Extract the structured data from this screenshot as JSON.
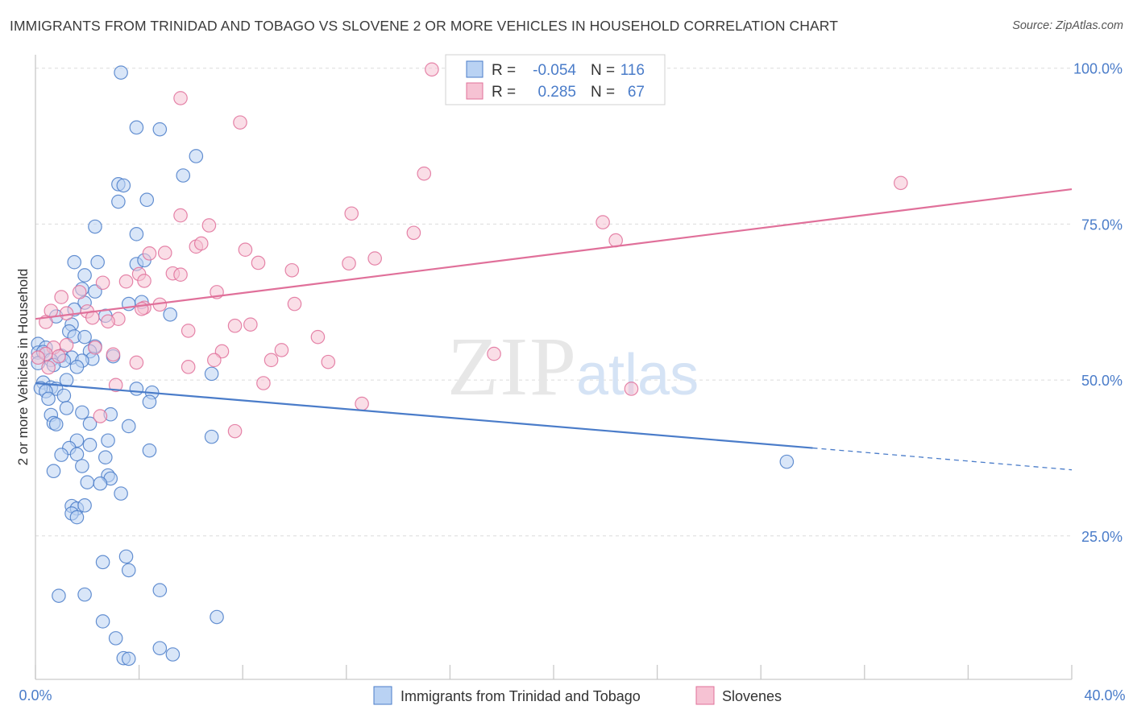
{
  "title": "IMMIGRANTS FROM TRINIDAD AND TOBAGO VS SLOVENE 2 OR MORE VEHICLES IN HOUSEHOLD CORRELATION CHART",
  "source": "Source: ZipAtlas.com",
  "watermark": {
    "zip": "ZIP",
    "atlas": "atlas"
  },
  "legend_box": {
    "rows": [
      {
        "r_label": "R =",
        "r_value": "-0.054",
        "n_label": "N =",
        "n_value": "116"
      },
      {
        "r_label": "R =",
        "r_value": "0.285",
        "n_label": "N =",
        "n_value": "67"
      }
    ]
  },
  "chart_data": {
    "type": "scatter",
    "xlabel": "",
    "ylabel": "2 or more Vehicles in Household",
    "xlim": [
      0,
      40
    ],
    "ylim": [
      2,
      101
    ],
    "x_tick_labels": [
      "0.0%",
      "40.0%"
    ],
    "y_ticks": [
      25,
      50,
      75,
      100
    ],
    "y_tick_labels": [
      "25.0%",
      "50.0%",
      "75.0%",
      "100.0%"
    ],
    "grid": true,
    "legend_position": "bottom",
    "colors": {
      "blue": "#4a7cc9",
      "blue_fill": "#b9d2f3",
      "pink": "#e0709a",
      "pink_fill": "#f6c2d3",
      "tick_text": "#4a7cc9"
    },
    "series": [
      {
        "name": "Immigrants from Trinidad and Tobago",
        "color": "#4a7cc9",
        "trend": {
          "x": [
            0,
            30
          ],
          "y": [
            49.5,
            39.1
          ],
          "dashed_x": [
            30,
            40
          ],
          "dashed_y": [
            39.1,
            35.6
          ]
        },
        "points": [
          [
            3.3,
            99.3
          ],
          [
            3.9,
            90.5
          ],
          [
            4.8,
            90.2
          ],
          [
            6.2,
            85.9
          ],
          [
            5.7,
            82.8
          ],
          [
            3.2,
            81.4
          ],
          [
            3.4,
            81.2
          ],
          [
            4.3,
            78.9
          ],
          [
            3.2,
            78.6
          ],
          [
            2.3,
            74.6
          ],
          [
            3.9,
            73.4
          ],
          [
            1.5,
            68.9
          ],
          [
            2.4,
            68.9
          ],
          [
            3.9,
            68.6
          ],
          [
            4.2,
            69.2
          ],
          [
            1.9,
            66.8
          ],
          [
            1.8,
            64.6
          ],
          [
            2.3,
            64.2
          ],
          [
            1.9,
            62.4
          ],
          [
            3.6,
            62.2
          ],
          [
            4.1,
            62.5
          ],
          [
            1.5,
            61.3
          ],
          [
            5.2,
            60.5
          ],
          [
            2.7,
            60.3
          ],
          [
            0.8,
            60.2
          ],
          [
            1.4,
            58.9
          ],
          [
            1.3,
            57.8
          ],
          [
            1.5,
            57.0
          ],
          [
            1.9,
            56.9
          ],
          [
            0.1,
            55.8
          ],
          [
            2.3,
            55.4
          ],
          [
            0.4,
            55.2
          ],
          [
            0.1,
            54.4
          ],
          [
            0.3,
            54.5
          ],
          [
            2.1,
            54.6
          ],
          [
            1.0,
            53.9
          ],
          [
            3.0,
            53.8
          ],
          [
            1.4,
            53.6
          ],
          [
            2.2,
            53.4
          ],
          [
            0.6,
            53.2
          ],
          [
            1.1,
            53.1
          ],
          [
            1.8,
            53.1
          ],
          [
            0.7,
            52.4
          ],
          [
            1.6,
            52.1
          ],
          [
            0.1,
            52.7
          ],
          [
            6.8,
            51.0
          ],
          [
            1.2,
            50.0
          ],
          [
            0.3,
            49.6
          ],
          [
            0.6,
            48.8
          ],
          [
            0.2,
            48.7
          ],
          [
            0.8,
            48.6
          ],
          [
            0.4,
            48.2
          ],
          [
            3.9,
            48.6
          ],
          [
            4.5,
            48.0
          ],
          [
            1.1,
            47.5
          ],
          [
            0.5,
            47.0
          ],
          [
            4.4,
            46.5
          ],
          [
            1.2,
            45.5
          ],
          [
            1.8,
            44.8
          ],
          [
            2.9,
            44.5
          ],
          [
            0.6,
            44.4
          ],
          [
            0.7,
            43.1
          ],
          [
            0.8,
            42.9
          ],
          [
            2.1,
            43.0
          ],
          [
            3.6,
            42.6
          ],
          [
            6.8,
            40.9
          ],
          [
            1.6,
            40.3
          ],
          [
            2.8,
            40.3
          ],
          [
            1.3,
            39.1
          ],
          [
            2.1,
            39.6
          ],
          [
            4.4,
            38.7
          ],
          [
            1.0,
            38.0
          ],
          [
            1.6,
            38.1
          ],
          [
            2.7,
            37.6
          ],
          [
            1.8,
            36.2
          ],
          [
            29.0,
            36.9
          ],
          [
            0.7,
            35.4
          ],
          [
            2.8,
            34.7
          ],
          [
            2.9,
            34.2
          ],
          [
            2.0,
            33.6
          ],
          [
            2.5,
            33.4
          ],
          [
            3.3,
            31.8
          ],
          [
            1.4,
            29.8
          ],
          [
            1.6,
            29.4
          ],
          [
            1.9,
            29.9
          ],
          [
            1.4,
            28.6
          ],
          [
            1.6,
            28.0
          ],
          [
            3.5,
            21.7
          ],
          [
            2.6,
            20.8
          ],
          [
            3.6,
            19.5
          ],
          [
            4.8,
            16.3
          ],
          [
            0.9,
            15.4
          ],
          [
            1.9,
            15.6
          ],
          [
            7.0,
            12.0
          ],
          [
            2.6,
            11.3
          ],
          [
            3.1,
            8.6
          ],
          [
            4.8,
            7.0
          ],
          [
            5.3,
            6.0
          ],
          [
            3.4,
            5.4
          ],
          [
            3.6,
            5.3
          ]
        ]
      },
      {
        "name": "Slovenes",
        "color": "#e0709a",
        "trend": {
          "x": [
            0,
            40
          ],
          "y": [
            59.8,
            80.6
          ]
        },
        "points": [
          [
            15.3,
            99.8
          ],
          [
            5.6,
            95.2
          ],
          [
            7.9,
            91.3
          ],
          [
            15.0,
            83.1
          ],
          [
            33.4,
            81.6
          ],
          [
            12.2,
            76.7
          ],
          [
            5.6,
            76.4
          ],
          [
            6.7,
            74.8
          ],
          [
            21.9,
            75.3
          ],
          [
            14.6,
            73.6
          ],
          [
            22.4,
            72.4
          ],
          [
            6.2,
            71.4
          ],
          [
            6.4,
            71.9
          ],
          [
            8.1,
            70.9
          ],
          [
            5.0,
            70.4
          ],
          [
            4.4,
            70.3
          ],
          [
            13.1,
            69.5
          ],
          [
            8.6,
            68.8
          ],
          [
            12.1,
            68.7
          ],
          [
            4.0,
            67.0
          ],
          [
            5.3,
            67.1
          ],
          [
            5.6,
            66.9
          ],
          [
            9.9,
            67.6
          ],
          [
            4.2,
            65.9
          ],
          [
            2.6,
            65.6
          ],
          [
            3.5,
            65.8
          ],
          [
            1.7,
            64.1
          ],
          [
            7.0,
            64.1
          ],
          [
            1.0,
            63.3
          ],
          [
            4.8,
            62.1
          ],
          [
            10.0,
            62.2
          ],
          [
            4.2,
            61.6
          ],
          [
            2.0,
            61.0
          ],
          [
            0.6,
            61.1
          ],
          [
            1.2,
            60.7
          ],
          [
            3.2,
            59.8
          ],
          [
            2.2,
            60.0
          ],
          [
            0.4,
            59.3
          ],
          [
            2.8,
            59.4
          ],
          [
            7.7,
            58.7
          ],
          [
            8.3,
            58.9
          ],
          [
            5.9,
            57.9
          ],
          [
            10.9,
            56.9
          ],
          [
            1.2,
            55.6
          ],
          [
            0.7,
            55.2
          ],
          [
            2.3,
            55.2
          ],
          [
            9.5,
            54.8
          ],
          [
            7.2,
            54.6
          ],
          [
            3.0,
            54.1
          ],
          [
            17.7,
            54.2
          ],
          [
            0.4,
            54.2
          ],
          [
            0.1,
            53.6
          ],
          [
            0.9,
            53.8
          ],
          [
            6.9,
            53.2
          ],
          [
            9.1,
            53.2
          ],
          [
            11.3,
            52.9
          ],
          [
            3.9,
            52.8
          ],
          [
            5.9,
            52.1
          ],
          [
            0.5,
            52.0
          ],
          [
            3.1,
            49.2
          ],
          [
            8.8,
            49.5
          ],
          [
            23.0,
            48.6
          ],
          [
            12.6,
            46.2
          ],
          [
            2.5,
            44.2
          ],
          [
            7.7,
            41.8
          ],
          [
            17.3,
            100.5
          ],
          [
            4.1,
            61.4
          ]
        ]
      }
    ]
  },
  "bottom_legend": [
    {
      "label": "Immigrants from Trinidad and Tobago"
    },
    {
      "label": "Slovenes"
    }
  ]
}
